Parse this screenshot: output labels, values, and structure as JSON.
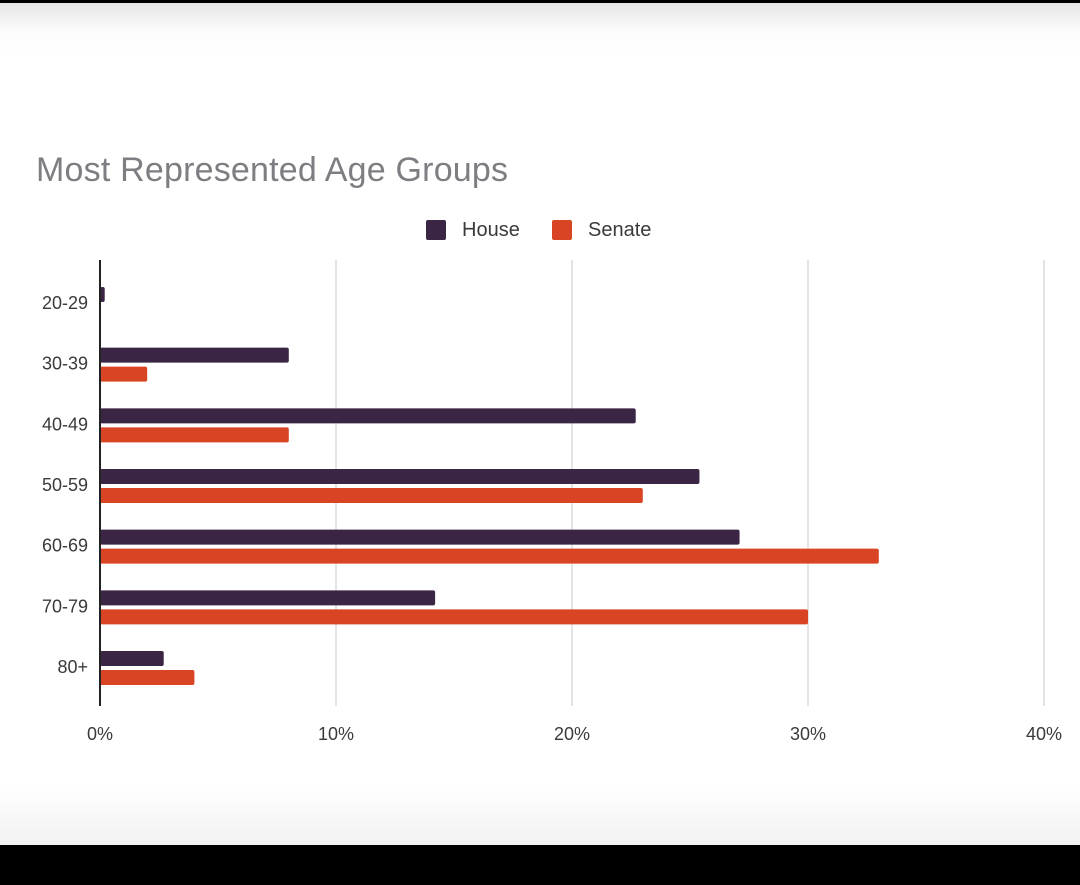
{
  "chart_data": {
    "type": "bar",
    "orientation": "horizontal",
    "title": "Most Represented Age Groups",
    "xlabel": "",
    "ylabel": "",
    "categories": [
      "20-29",
      "30-39",
      "40-49",
      "50-59",
      "60-69",
      "70-79",
      "80+"
    ],
    "series": [
      {
        "name": "House",
        "color": "#3a2544",
        "values": [
          0.2,
          8.0,
          22.7,
          25.4,
          27.1,
          14.2,
          2.7
        ]
      },
      {
        "name": "Senate",
        "color": "#d94424",
        "values": [
          0,
          2.0,
          8.0,
          23.0,
          33.0,
          30.0,
          4.0
        ]
      }
    ],
    "xlim": [
      0,
      40
    ],
    "xticks": [
      0,
      10,
      20,
      30,
      40
    ],
    "xtick_labels": [
      "0%",
      "10%",
      "20%",
      "30%",
      "40%"
    ],
    "grid": "vertical",
    "legend_position": "top-center"
  }
}
